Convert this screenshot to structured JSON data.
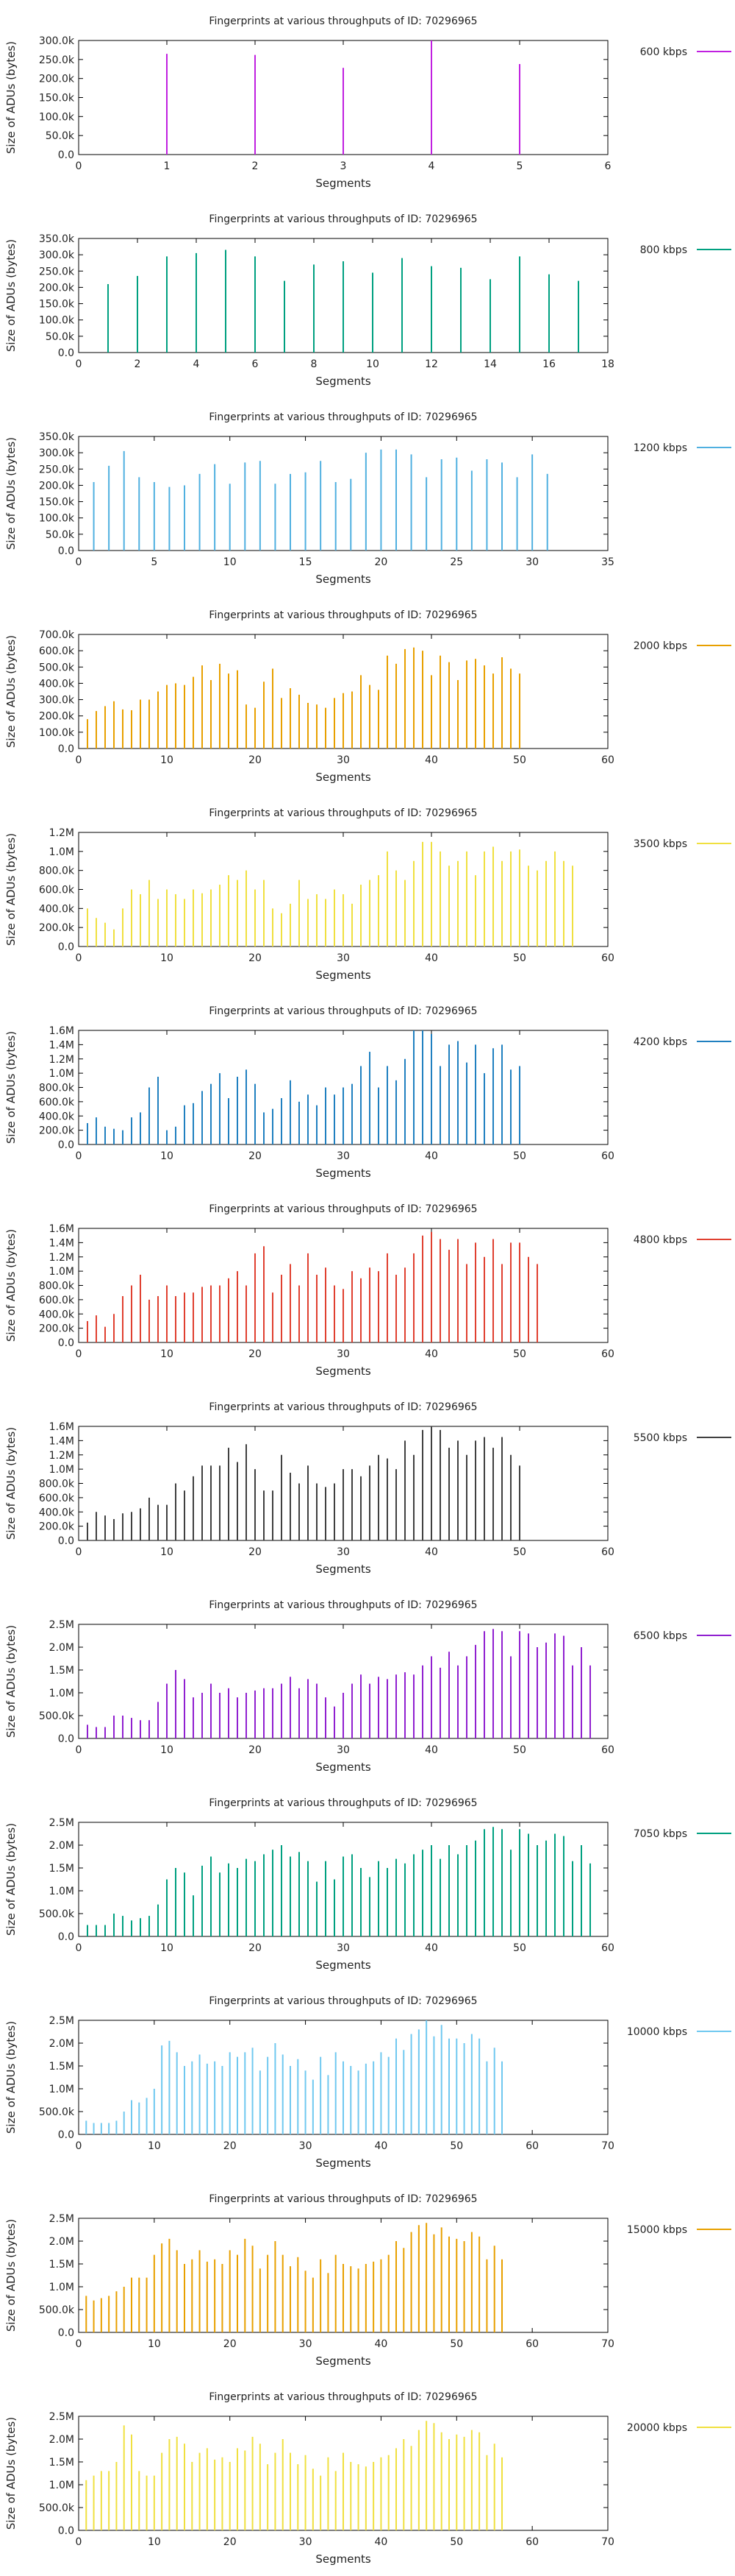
{
  "chart_data": [
    {
      "type": "bar",
      "title": "Fingerprints at various throughputs of ID: 70296965",
      "xlabel": "Segments",
      "ylabel": "Size of ADUs (bytes)",
      "legend": "600 kbps",
      "color": "#c020e0",
      "xlim": [
        0,
        6
      ],
      "ylim": [
        0,
        300000
      ],
      "xticks": [
        "0",
        "1",
        "2",
        "3",
        "4",
        "5",
        "6"
      ],
      "yticks": [
        "0.0",
        "50.0k",
        "100.0k",
        "150.0k",
        "200.0k",
        "250.0k",
        "300.0k"
      ],
      "values": [
        265000,
        262000,
        228000,
        300000,
        238000
      ]
    },
    {
      "type": "bar",
      "title": "Fingerprints at various throughputs of ID: 70296965",
      "xlabel": "Segments",
      "ylabel": "Size of ADUs (bytes)",
      "legend": "800 kbps",
      "color": "#00a080",
      "xlim": [
        0,
        18
      ],
      "ylim": [
        0,
        350000
      ],
      "xticks": [
        "0",
        "2",
        "4",
        "6",
        "8",
        "10",
        "12",
        "14",
        "16",
        "18"
      ],
      "yticks": [
        "0.0",
        "50.0k",
        "100.0k",
        "150.0k",
        "200.0k",
        "250.0k",
        "300.0k",
        "350.0k"
      ],
      "values": [
        210000,
        235000,
        295000,
        305000,
        315000,
        295000,
        220000,
        270000,
        280000,
        245000,
        290000,
        265000,
        260000,
        225000,
        295000,
        240000,
        220000
      ]
    },
    {
      "type": "bar",
      "title": "Fingerprints at various throughputs of ID: 70296965",
      "xlabel": "Segments",
      "ylabel": "Size of ADUs (bytes)",
      "legend": "1200 kbps",
      "color": "#50b0e0",
      "xlim": [
        0,
        35
      ],
      "ylim": [
        0,
        350000
      ],
      "xticks": [
        "0",
        "5",
        "10",
        "15",
        "20",
        "25",
        "30",
        "35"
      ],
      "yticks": [
        "0.0",
        "50.0k",
        "100.0k",
        "150.0k",
        "200.0k",
        "250.0k",
        "300.0k",
        "350.0k"
      ],
      "values": [
        210000,
        260000,
        305000,
        225000,
        210000,
        195000,
        200000,
        235000,
        265000,
        205000,
        270000,
        275000,
        205000,
        235000,
        240000,
        275000,
        210000,
        220000,
        300000,
        310000,
        310000,
        295000,
        225000,
        280000,
        285000,
        245000,
        280000,
        270000,
        225000,
        295000,
        235000
      ]
    },
    {
      "type": "bar",
      "title": "Fingerprints at various throughputs of ID: 70296965",
      "xlabel": "Segments",
      "ylabel": "Size of ADUs (bytes)",
      "legend": "2000 kbps",
      "color": "#e8a000",
      "xlim": [
        0,
        60
      ],
      "ylim": [
        0,
        700000
      ],
      "xticks": [
        "0",
        "10",
        "20",
        "30",
        "40",
        "50",
        "60"
      ],
      "yticks": [
        "0.0",
        "100.0k",
        "200.0k",
        "300.0k",
        "400.0k",
        "500.0k",
        "600.0k",
        "700.0k"
      ],
      "values": [
        180000,
        230000,
        260000,
        290000,
        240000,
        235000,
        300000,
        300000,
        350000,
        390000,
        400000,
        390000,
        440000,
        510000,
        420000,
        520000,
        460000,
        480000,
        270000,
        250000,
        410000,
        490000,
        310000,
        370000,
        330000,
        280000,
        270000,
        250000,
        310000,
        340000,
        350000,
        450000,
        390000,
        360000,
        570000,
        520000,
        610000,
        620000,
        600000,
        450000,
        570000,
        530000,
        420000,
        540000,
        550000,
        510000,
        460000,
        560000,
        490000,
        460000
      ]
    },
    {
      "type": "bar",
      "title": "Fingerprints at various throughputs of ID: 70296965",
      "xlabel": "Segments",
      "ylabel": "Size of ADUs (bytes)",
      "legend": "3500 kbps",
      "color": "#f0e040",
      "xlim": [
        0,
        60
      ],
      "ylim": [
        0,
        1200000
      ],
      "xticks": [
        "0",
        "10",
        "20",
        "30",
        "40",
        "50",
        "60"
      ],
      "yticks": [
        "0.0",
        "200.0k",
        "400.0k",
        "600.0k",
        "800.0k",
        "1.0M",
        "1.2M"
      ],
      "values": [
        400000,
        300000,
        250000,
        180000,
        400000,
        600000,
        550000,
        700000,
        500000,
        600000,
        550000,
        500000,
        600000,
        560000,
        600000,
        650000,
        750000,
        700000,
        800000,
        600000,
        700000,
        400000,
        350000,
        450000,
        700000,
        500000,
        550000,
        500000,
        600000,
        550000,
        450000,
        650000,
        700000,
        750000,
        1000000,
        800000,
        700000,
        900000,
        1100000,
        1100000,
        1000000,
        850000,
        900000,
        1000000,
        750000,
        1000000,
        1050000,
        900000,
        1000000,
        1020000,
        850000,
        800000,
        900000,
        1000000,
        900000,
        850000
      ]
    },
    {
      "type": "bar",
      "title": "Fingerprints at various throughputs of ID: 70296965",
      "xlabel": "Segments",
      "ylabel": "Size of ADUs (bytes)",
      "legend": "4200 kbps",
      "color": "#2080c0",
      "xlim": [
        0,
        60
      ],
      "ylim": [
        0,
        1600000
      ],
      "xticks": [
        "0",
        "10",
        "20",
        "30",
        "40",
        "50",
        "60"
      ],
      "yticks": [
        "0.0",
        "200.0k",
        "400.0k",
        "600.0k",
        "800.0k",
        "1.0M",
        "1.2M",
        "1.4M",
        "1.6M"
      ],
      "values": [
        300000,
        380000,
        250000,
        220000,
        200000,
        380000,
        450000,
        800000,
        950000,
        200000,
        250000,
        550000,
        580000,
        750000,
        850000,
        1000000,
        650000,
        950000,
        1050000,
        850000,
        450000,
        500000,
        650000,
        900000,
        600000,
        700000,
        550000,
        800000,
        700000,
        800000,
        850000,
        1100000,
        1300000,
        800000,
        1100000,
        900000,
        1200000,
        1600000,
        1600000,
        1550000,
        1100000,
        1400000,
        1450000,
        1150000,
        1400000,
        1000000,
        1350000,
        1400000,
        1050000,
        1100000
      ]
    },
    {
      "type": "bar",
      "title": "Fingerprints at various throughputs of ID: 70296965",
      "xlabel": "Segments",
      "ylabel": "Size of ADUs (bytes)",
      "legend": "4800 kbps",
      "color": "#e04030",
      "xlim": [
        0,
        60
      ],
      "ylim": [
        0,
        1600000
      ],
      "xticks": [
        "0",
        "10",
        "20",
        "30",
        "40",
        "50",
        "60"
      ],
      "yticks": [
        "0.0",
        "200.0k",
        "400.0k",
        "600.0k",
        "800.0k",
        "1.0M",
        "1.2M",
        "1.4M",
        "1.6M"
      ],
      "values": [
        300000,
        380000,
        220000,
        400000,
        650000,
        800000,
        950000,
        600000,
        650000,
        800000,
        650000,
        700000,
        700000,
        780000,
        800000,
        800000,
        900000,
        1000000,
        800000,
        1250000,
        1350000,
        700000,
        950000,
        1100000,
        800000,
        1250000,
        950000,
        1050000,
        800000,
        750000,
        1000000,
        900000,
        1050000,
        1000000,
        1250000,
        950000,
        1050000,
        1250000,
        1500000,
        1550000,
        1450000,
        1300000,
        1450000,
        1100000,
        1400000,
        1200000,
        1450000,
        1100000,
        1400000,
        1400000,
        1200000,
        1100000
      ]
    },
    {
      "type": "bar",
      "title": "Fingerprints at various throughputs of ID: 70296965",
      "xlabel": "Segments",
      "ylabel": "Size of ADUs (bytes)",
      "legend": "5500 kbps",
      "color": "#404040",
      "xlim": [
        0,
        60
      ],
      "ylim": [
        0,
        1600000
      ],
      "xticks": [
        "0",
        "10",
        "20",
        "30",
        "40",
        "50",
        "60"
      ],
      "yticks": [
        "0.0",
        "200.0k",
        "400.0k",
        "600.0k",
        "800.0k",
        "1.0M",
        "1.2M",
        "1.4M",
        "1.6M"
      ],
      "values": [
        250000,
        400000,
        350000,
        300000,
        380000,
        400000,
        450000,
        600000,
        500000,
        500000,
        800000,
        700000,
        900000,
        1050000,
        1050000,
        1050000,
        1300000,
        1100000,
        1350000,
        1000000,
        700000,
        700000,
        1200000,
        950000,
        800000,
        1050000,
        800000,
        750000,
        800000,
        1000000,
        1000000,
        900000,
        1050000,
        1200000,
        1150000,
        1000000,
        1400000,
        1200000,
        1550000,
        1600000,
        1550000,
        1300000,
        1400000,
        1200000,
        1400000,
        1450000,
        1300000,
        1450000,
        1200000,
        1050000
      ]
    },
    {
      "type": "bar",
      "title": "Fingerprints at various throughputs of ID: 70296965",
      "xlabel": "Segments",
      "ylabel": "Size of ADUs (bytes)",
      "legend": "6500 kbps",
      "color": "#9020d0",
      "xlim": [
        0,
        60
      ],
      "ylim": [
        0,
        2500000
      ],
      "xticks": [
        "0",
        "10",
        "20",
        "30",
        "40",
        "50",
        "60"
      ],
      "yticks": [
        "0.0",
        "500.0k",
        "1.0M",
        "1.5M",
        "2.0M",
        "2.5M"
      ],
      "values": [
        300000,
        250000,
        250000,
        500000,
        500000,
        450000,
        400000,
        400000,
        800000,
        1200000,
        1500000,
        1300000,
        900000,
        1000000,
        1200000,
        1000000,
        1100000,
        900000,
        1000000,
        1050000,
        1100000,
        1100000,
        1200000,
        1350000,
        1100000,
        1300000,
        1200000,
        900000,
        700000,
        1000000,
        1200000,
        1400000,
        1200000,
        1350000,
        1300000,
        1400000,
        1450000,
        1400000,
        1600000,
        1800000,
        1550000,
        1900000,
        1600000,
        1800000,
        2050000,
        2350000,
        2400000,
        2350000,
        1800000,
        2350000,
        2300000,
        2000000,
        2100000,
        2300000,
        2250000,
        1600000,
        2000000,
        1600000
      ]
    },
    {
      "type": "bar",
      "title": "Fingerprints at various throughputs of ID: 70296965",
      "xlabel": "Segments",
      "ylabel": "Size of ADUs (bytes)",
      "legend": "7050 kbps",
      "color": "#00a080",
      "xlim": [
        0,
        60
      ],
      "ylim": [
        0,
        2500000
      ],
      "xticks": [
        "0",
        "10",
        "20",
        "30",
        "40",
        "50",
        "60"
      ],
      "yticks": [
        "0.0",
        "500.0k",
        "1.0M",
        "1.5M",
        "2.0M",
        "2.5M"
      ],
      "values": [
        250000,
        250000,
        250000,
        500000,
        450000,
        350000,
        400000,
        450000,
        700000,
        1250000,
        1500000,
        1400000,
        900000,
        1550000,
        1750000,
        1400000,
        1600000,
        1500000,
        1700000,
        1650000,
        1800000,
        1900000,
        2000000,
        1750000,
        1850000,
        1650000,
        1200000,
        1650000,
        1250000,
        1750000,
        1800000,
        1500000,
        1300000,
        1650000,
        1500000,
        1700000,
        1600000,
        1800000,
        1900000,
        2000000,
        1700000,
        2000000,
        1800000,
        2000000,
        2100000,
        2350000,
        2400000,
        2350000,
        1900000,
        2350000,
        2250000,
        2000000,
        2100000,
        2250000,
        2200000,
        1650000,
        2000000,
        1600000
      ]
    },
    {
      "type": "bar",
      "title": "Fingerprints at various throughputs of ID: 70296965",
      "xlabel": "Segments",
      "ylabel": "Size of ADUs (bytes)",
      "legend": "10000 kbps",
      "color": "#70c8f0",
      "xlim": [
        0,
        70
      ],
      "ylim": [
        0,
        2500000
      ],
      "xticks": [
        "0",
        "10",
        "20",
        "30",
        "40",
        "50",
        "60",
        "70"
      ],
      "yticks": [
        "0.0",
        "500.0k",
        "1.0M",
        "1.5M",
        "2.0M",
        "2.5M"
      ],
      "values": [
        300000,
        250000,
        250000,
        250000,
        300000,
        500000,
        750000,
        700000,
        800000,
        1000000,
        1950000,
        2050000,
        1800000,
        1500000,
        1600000,
        1750000,
        1550000,
        1600000,
        1500000,
        1800000,
        1700000,
        1800000,
        1900000,
        1400000,
        1700000,
        2000000,
        1750000,
        1500000,
        1650000,
        1400000,
        1200000,
        1700000,
        1300000,
        1800000,
        1600000,
        1500000,
        1400000,
        1550000,
        1600000,
        1800000,
        1700000,
        2100000,
        1850000,
        2200000,
        2300000,
        2500000,
        2150000,
        2400000,
        2100000,
        2100000,
        2000000,
        2200000,
        2100000,
        1600000,
        1900000,
        1600000
      ]
    },
    {
      "type": "bar",
      "title": "Fingerprints at various throughputs of ID: 70296965",
      "xlabel": "Segments",
      "ylabel": "Size of ADUs (bytes)",
      "legend": "15000 kbps",
      "color": "#e8a000",
      "xlim": [
        0,
        70
      ],
      "ylim": [
        0,
        2500000
      ],
      "xticks": [
        "0",
        "10",
        "20",
        "30",
        "40",
        "50",
        "60",
        "70"
      ],
      "yticks": [
        "0.0",
        "500.0k",
        "1.0M",
        "1.5M",
        "2.0M",
        "2.5M"
      ],
      "values": [
        800000,
        700000,
        750000,
        800000,
        900000,
        1000000,
        1200000,
        1200000,
        1200000,
        1700000,
        1950000,
        2050000,
        1800000,
        1500000,
        1600000,
        1800000,
        1550000,
        1600000,
        1500000,
        1800000,
        1700000,
        2050000,
        1900000,
        1400000,
        1700000,
        2000000,
        1700000,
        1450000,
        1650000,
        1350000,
        1200000,
        1600000,
        1300000,
        1700000,
        1500000,
        1450000,
        1400000,
        1500000,
        1550000,
        1600000,
        1700000,
        2000000,
        1850000,
        2200000,
        2350000,
        2400000,
        2150000,
        2300000,
        2100000,
        2050000,
        2000000,
        2200000,
        2100000,
        1600000,
        1900000,
        1600000
      ]
    },
    {
      "type": "bar",
      "title": "Fingerprints at various throughputs of ID: 70296965",
      "xlabel": "Segments",
      "ylabel": "Size of ADUs (bytes)",
      "legend": "20000 kbps",
      "color": "#f0e040",
      "xlim": [
        0,
        70
      ],
      "ylim": [
        0,
        2500000
      ],
      "xticks": [
        "0",
        "10",
        "20",
        "30",
        "40",
        "50",
        "60",
        "70"
      ],
      "yticks": [
        "0.0",
        "500.0k",
        "1.0M",
        "1.5M",
        "2.0M",
        "2.5M"
      ],
      "values": [
        1100000,
        1200000,
        1300000,
        1300000,
        1500000,
        2300000,
        2100000,
        1300000,
        1200000,
        1200000,
        1700000,
        2000000,
        2050000,
        1900000,
        1500000,
        1700000,
        1800000,
        1550000,
        1600000,
        1500000,
        1800000,
        1750000,
        2050000,
        1900000,
        1450000,
        1700000,
        2000000,
        1700000,
        1450000,
        1650000,
        1350000,
        1200000,
        1600000,
        1300000,
        1700000,
        1500000,
        1450000,
        1400000,
        1500000,
        1600000,
        1650000,
        1800000,
        2000000,
        1850000,
        2200000,
        2400000,
        2350000,
        2150000,
        2000000,
        2100000,
        2050000,
        2200000,
        2150000,
        1650000,
        1900000,
        1600000
      ]
    }
  ]
}
